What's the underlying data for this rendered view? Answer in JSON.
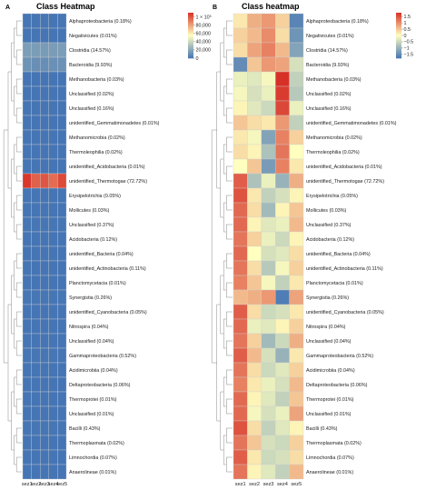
{
  "chart_data": [
    {
      "type": "heatmap",
      "panel": "A",
      "title": "Class Heatmap",
      "columns": [
        "sez1",
        "sez2",
        "sez3",
        "sez4",
        "sez5"
      ],
      "rows": [
        "Alphaproteobacteria (0.18%)",
        "Negativicutes (0.01%)",
        "Clostridia (14.57%)",
        "Bacteroidia (9.93%)",
        "Methanobacteria (0.03%)",
        "Unclassified (0.02%)",
        "Unclassified (0.16%)",
        "unidentified_Gemmatimonadetes (0.01%)",
        "Methanomicrobia (0.02%)",
        "Thermoleophilia (0.02%)",
        "unidentified_Acidobacteria (0.01%)",
        "unidentified_Thermotogae (72.72%)",
        "Erysipelotrichia (0.05%)",
        "Mollicutes (0.03%)",
        "Unclassified (0.37%)",
        "Acidobacteria (0.12%)",
        "unidentified_Bacteria (0.04%)",
        "unidentified_Actinobacteria (0.11%)",
        "Planctomycetacia (0.01%)",
        "Synergistia (0.26%)",
        "unidentified_Cyanobacteria (0.05%)",
        "Nitrospira (0.04%)",
        "Unclassified (0.04%)",
        "Gammaproteobacteria (0.52%)",
        "Acidimicrobiia (0.04%)",
        "Deltaproteobacteria (0.06%)",
        "Thermoprotei (0.01%)",
        "Unclassified (0.01%)",
        "Bacilli (0.43%)",
        "Thermoplasmata (0.02%)",
        "Limnochordia (0.07%)",
        "Anaerolineae (0.01%)"
      ],
      "scale": {
        "min": 0,
        "max": 110000
      },
      "legend": {
        "ticks": [
          0,
          20000,
          40000,
          60000,
          80000,
          100000
        ],
        "labels": [
          "0",
          "20,000",
          "40,000",
          "60,000",
          "80,000",
          "1 × 10⁵"
        ]
      },
      "values": [
        [
          200,
          190,
          210,
          180,
          200
        ],
        [
          10,
          12,
          9,
          11,
          10
        ],
        [
          16500,
          15800,
          15200,
          15600,
          16000
        ],
        [
          11800,
          10500,
          9800,
          10900,
          11200
        ],
        [
          30,
          25,
          45,
          60,
          35
        ],
        [
          20,
          18,
          22,
          21,
          19
        ],
        [
          180,
          160,
          150,
          170,
          165
        ],
        [
          10,
          11,
          9,
          12,
          10
        ],
        [
          20,
          22,
          18,
          21,
          19
        ],
        [
          22,
          20,
          19,
          21,
          20
        ],
        [
          10,
          11,
          12,
          9,
          10
        ],
        [
          108000,
          97000,
          100000,
          94000,
          103000
        ],
        [
          60,
          50,
          45,
          55,
          50
        ],
        [
          30,
          32,
          28,
          31,
          29
        ],
        [
          400,
          380,
          360,
          390,
          370
        ],
        [
          130,
          120,
          125,
          118,
          122
        ],
        [
          45,
          40,
          42,
          38,
          41
        ],
        [
          120,
          115,
          110,
          118,
          112
        ],
        [
          10,
          11,
          9,
          12,
          10
        ],
        [
          300,
          280,
          250,
          270,
          290
        ],
        [
          55,
          50,
          52,
          48,
          51
        ],
        [
          42,
          40,
          45,
          38,
          41
        ],
        [
          44,
          40,
          42,
          43,
          41
        ],
        [
          560,
          540,
          520,
          530,
          550
        ],
        [
          42,
          40,
          45,
          38,
          41
        ],
        [
          65,
          60,
          62,
          58,
          61
        ],
        [
          10,
          11,
          9,
          12,
          10
        ],
        [
          12,
          10,
          11,
          9,
          10
        ],
        [
          460,
          440,
          420,
          450,
          430
        ],
        [
          22,
          20,
          21,
          19,
          20
        ],
        [
          75,
          70,
          72,
          68,
          71
        ],
        [
          10,
          11,
          9,
          12,
          10
        ]
      ],
      "colors": {
        "low": "#4575b4",
        "mid": "#ffffbf",
        "high": "#d73027"
      }
    },
    {
      "type": "heatmap",
      "panel": "B",
      "title": "Class heatmap",
      "columns": [
        "sez1",
        "sez2",
        "sez3",
        "sez4",
        "sez5"
      ],
      "rows": [
        "Alphaproteobacteria (0.18%)",
        "Negativicutes (0.01%)",
        "Clostridia (14.57%)",
        "Bacteroidia (9.93%)",
        "Methanobacteria (0.03%)",
        "Unclassified (0.02%)",
        "Unclassified (0.16%)",
        "unidentified_Gemmatimonadetes (0.01%)",
        "Methanomicrobia (0.02%)",
        "Thermoleophilia (0.02%)",
        "unidentified_Acidobacteria (0.01%)",
        "unidentified_Thermotogae (72.72%)",
        "Erysipelotrichia (0.05%)",
        "Mollicutes (0.03%)",
        "Unclassified (0.37%)",
        "Acidobacteria (0.12%)",
        "unidentified_Bacteria (0.04%)",
        "unidentified_Actinobacteria (0.11%)",
        "Planctomycetacia (0.01%)",
        "Synergistia (0.26%)",
        "unidentified_Cyanobacteria (0.05%)",
        "Nitrospira (0.04%)",
        "Unclassified (0.04%)",
        "Gammaproteobacteria (0.52%)",
        "Acidimicrobiia (0.04%)",
        "Deltaproteobacteria (0.06%)",
        "Thermoprotei (0.01%)",
        "Unclassified (0.01%)",
        "Bacilli (0.43%)",
        "Thermoplasmata (0.02%)",
        "Limnochordia (0.07%)",
        "Anaerolineae (0.01%)"
      ],
      "scale": {
        "min": -1.8,
        "max": 1.8
      },
      "legend": {
        "ticks": [
          1.5,
          1,
          0.5,
          0,
          -0.5,
          -1,
          -1.5
        ],
        "labels": [
          "1.5",
          "1",
          "0.5",
          "0",
          "−0.5",
          "−1",
          "−1.5"
        ]
      },
      "values": [
        [
          0.2,
          0.7,
          0.9,
          0.4,
          -1.6
        ],
        [
          0.4,
          0.6,
          1.0,
          0.3,
          -1.4
        ],
        [
          0.3,
          0.8,
          1.1,
          0.6,
          -1.2
        ],
        [
          -1.5,
          0.5,
          0.9,
          0.8,
          -0.4
        ],
        [
          -0.2,
          -0.3,
          -0.1,
          1.8,
          -0.6
        ],
        [
          -0.1,
          -0.4,
          -0.2,
          1.7,
          -0.7
        ],
        [
          0.1,
          -0.3,
          -0.5,
          1.6,
          -0.2
        ],
        [
          0.5,
          0.3,
          0.2,
          0.9,
          -0.6
        ],
        [
          0.2,
          -0.1,
          -1.2,
          1.1,
          0.4
        ],
        [
          0.3,
          0.1,
          -0.8,
          1.2,
          0.0
        ],
        [
          0.0,
          0.5,
          -1.3,
          1.1,
          0.2
        ],
        [
          1.4,
          -0.8,
          -0.2,
          -1.0,
          0.7
        ],
        [
          1.5,
          0.2,
          -0.6,
          -0.4,
          0.1
        ],
        [
          1.3,
          0.3,
          -0.9,
          0.1,
          0.5
        ],
        [
          1.3,
          0.1,
          -0.3,
          -0.2,
          0.6
        ],
        [
          1.2,
          0.4,
          -0.2,
          -0.5,
          0.1
        ],
        [
          1.3,
          0.0,
          -0.4,
          -0.3,
          0.3
        ],
        [
          1.2,
          0.3,
          -0.7,
          -0.1,
          0.4
        ],
        [
          1.1,
          0.5,
          -0.1,
          -0.6,
          0.2
        ],
        [
          0.6,
          0.7,
          0.9,
          -1.7,
          0.8
        ],
        [
          1.4,
          0.3,
          -0.5,
          -0.4,
          0.2
        ],
        [
          1.3,
          -0.2,
          -0.3,
          0.1,
          0.4
        ],
        [
          1.2,
          0.4,
          -0.9,
          -0.5,
          0.7
        ],
        [
          1.4,
          0.6,
          -0.4,
          -1.0,
          0.2
        ],
        [
          1.2,
          0.3,
          -0.5,
          -0.3,
          0.4
        ],
        [
          1.1,
          0.2,
          -0.2,
          -0.4,
          0.6
        ],
        [
          1.3,
          0.1,
          -0.3,
          -0.6,
          0.5
        ],
        [
          1.3,
          -0.1,
          -0.4,
          -0.2,
          0.8
        ],
        [
          1.5,
          0.3,
          -0.6,
          -0.3,
          0.1
        ],
        [
          1.2,
          0.5,
          -0.4,
          -0.5,
          0.4
        ],
        [
          1.4,
          0.2,
          -0.5,
          -0.4,
          0.3
        ],
        [
          1.2,
          0.1,
          -0.3,
          -0.6,
          0.6
        ]
      ],
      "colors": {
        "low": "#4575b4",
        "mid": "#ffffbf",
        "high": "#d73027"
      }
    }
  ]
}
